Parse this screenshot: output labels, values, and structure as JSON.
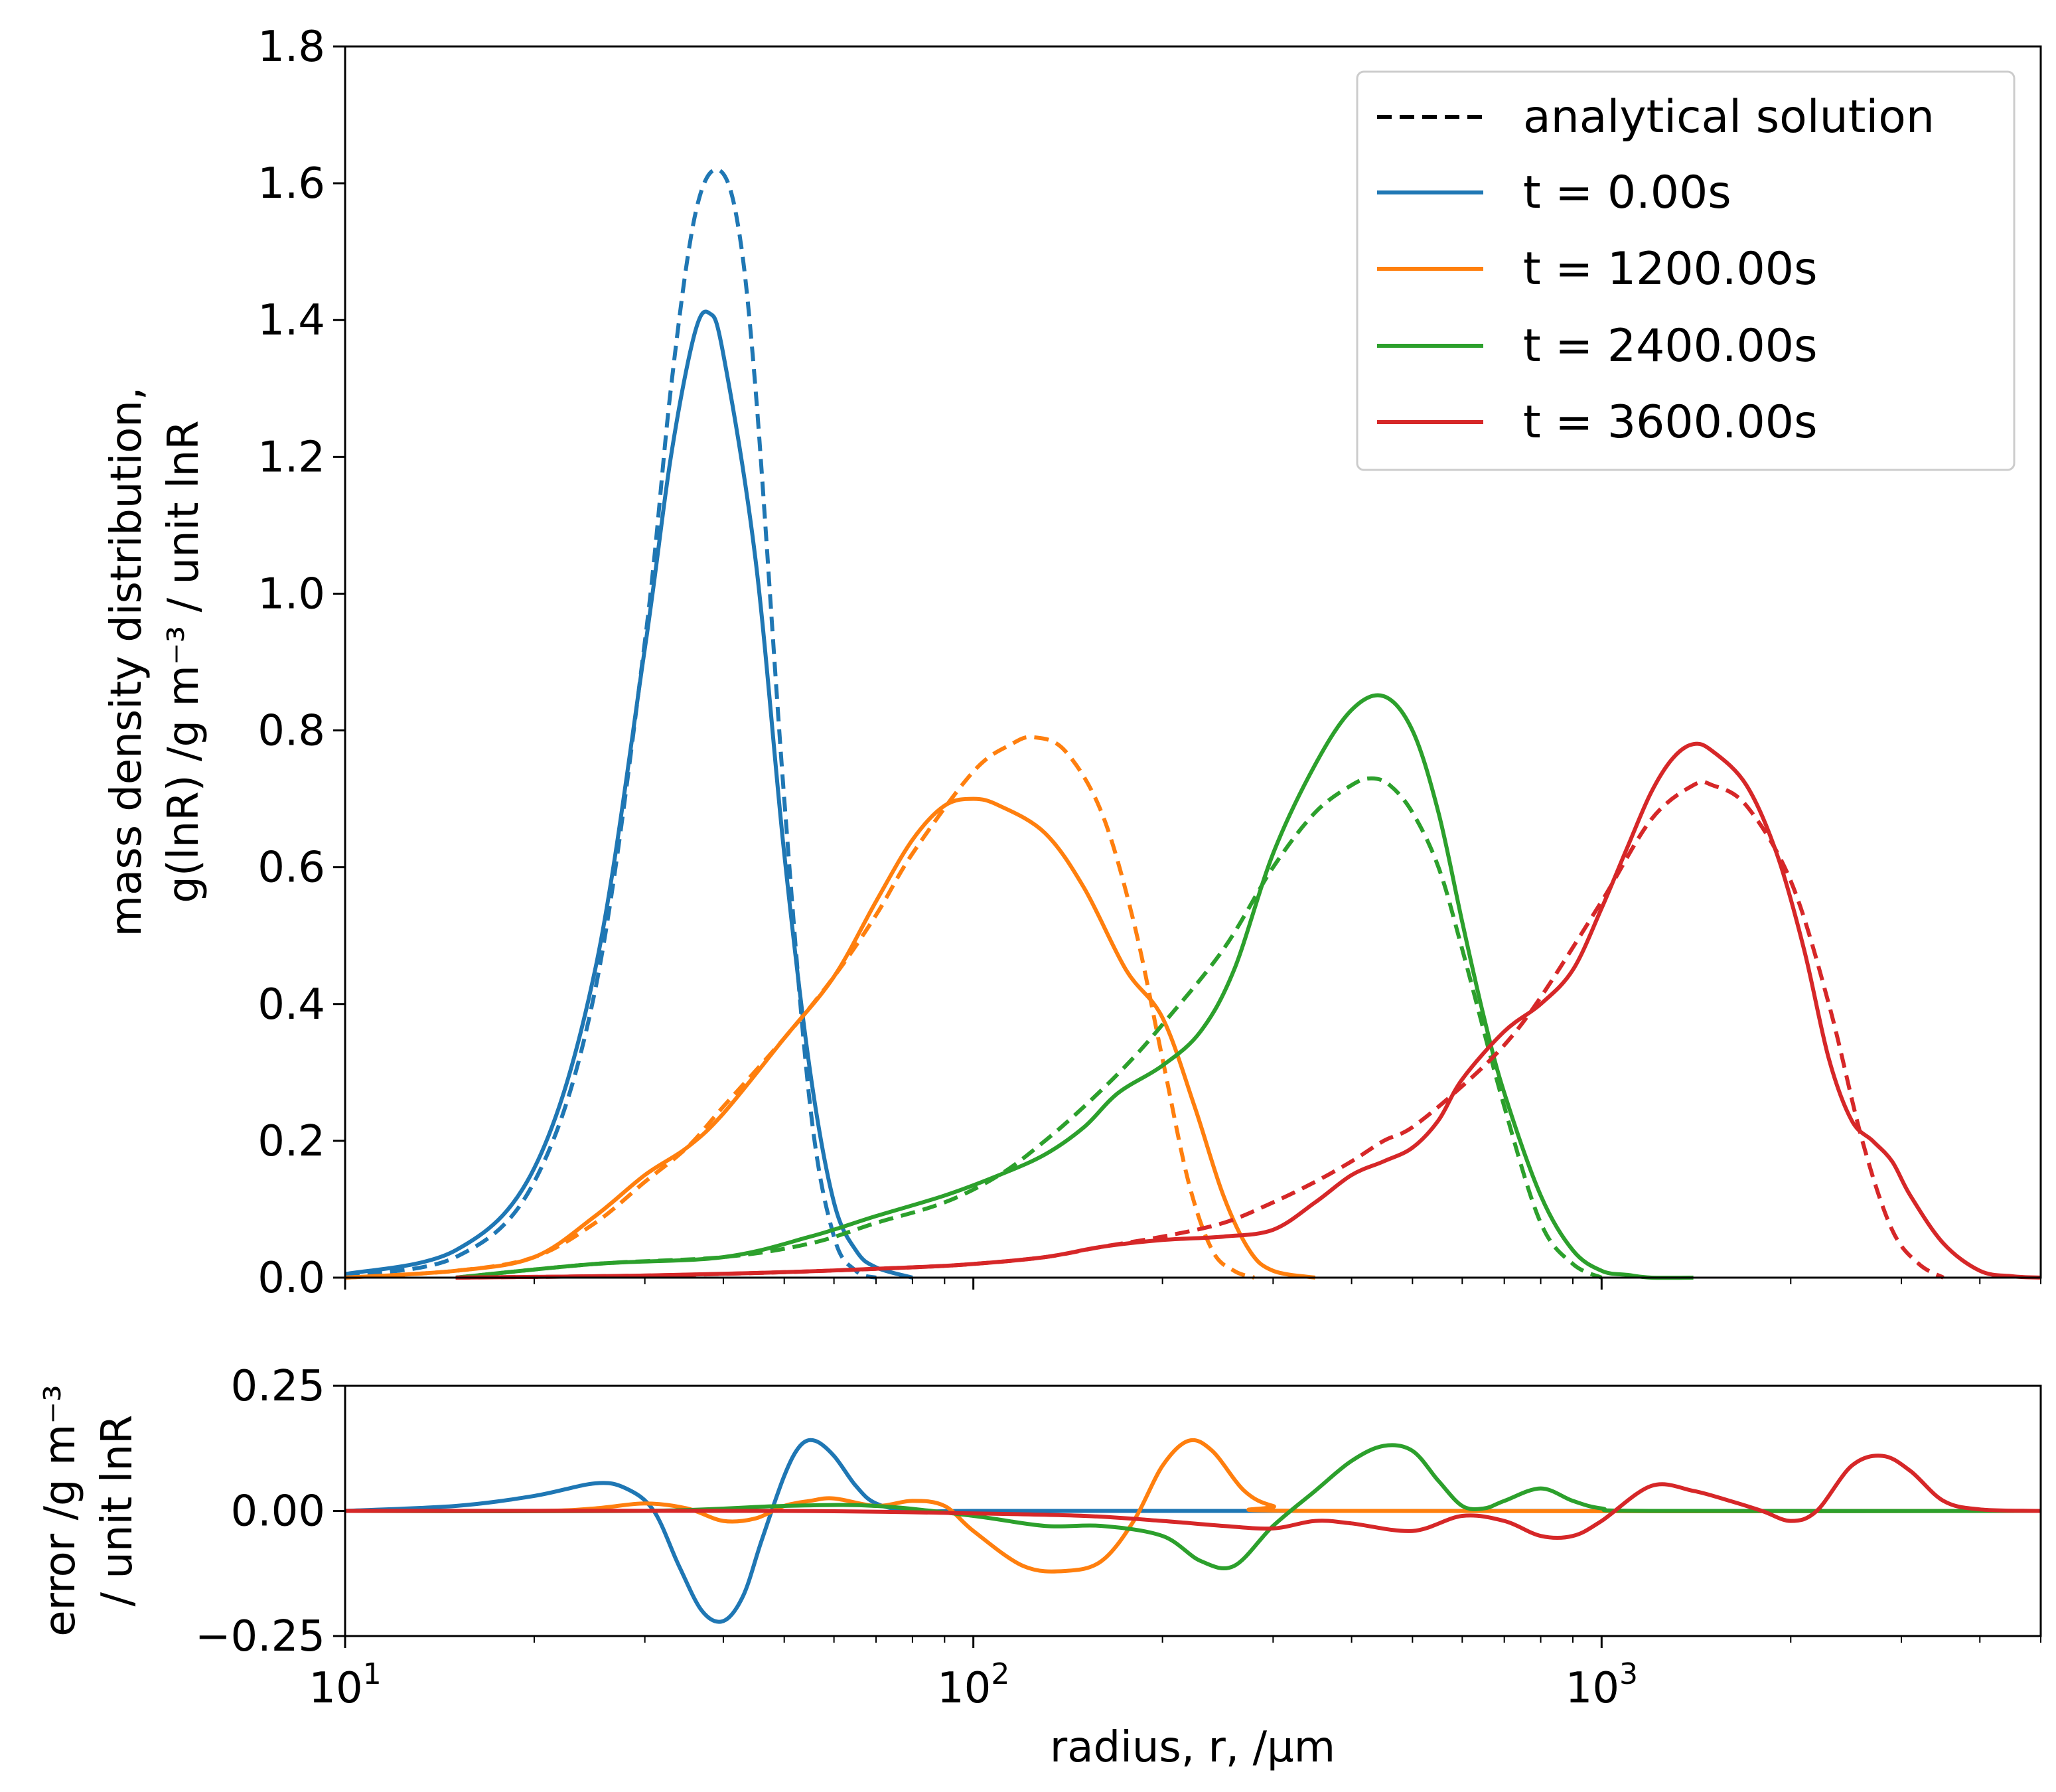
{
  "chart_data": [
    {
      "type": "line",
      "panel": "main",
      "xlabel": "",
      "ylabel_line1": "mass density distribution,",
      "ylabel_line2": "g(lnR) /g m⁻³ / unit lnR",
      "x_scale": "log",
      "xlim": [
        10,
        5000
      ],
      "ylim": [
        0,
        1.8
      ],
      "yticks": [
        "0.0",
        "0.2",
        "0.4",
        "0.6",
        "0.8",
        "1.0",
        "1.2",
        "1.4",
        "1.6",
        "1.8"
      ],
      "grid": false,
      "legend_position": "upper right",
      "legend": [
        {
          "label": "analytical solution",
          "color": "#000000",
          "style": "dashed"
        },
        {
          "label": "t = 0.00s",
          "color": "#1f77b4",
          "style": "solid"
        },
        {
          "label": "t = 1200.00s",
          "color": "#ff7f0e",
          "style": "solid"
        },
        {
          "label": "t = 2400.00s",
          "color": "#2ca02c",
          "style": "solid"
        },
        {
          "label": "t = 3600.00s",
          "color": "#d62728",
          "style": "solid"
        }
      ],
      "series": [
        {
          "name": "t = 0.00s",
          "color": "#1f77b4",
          "style": "solid",
          "x": [
            10,
            15,
            20,
            25,
            30,
            33,
            36,
            38,
            40,
            45,
            50,
            55,
            60,
            65,
            70,
            80
          ],
          "y": [
            0.005,
            0.04,
            0.16,
            0.45,
            0.92,
            1.2,
            1.38,
            1.41,
            1.35,
            1.05,
            0.62,
            0.3,
            0.11,
            0.04,
            0.015,
            0.0
          ]
        },
        {
          "name": "t = 0.00s (analytical)",
          "color": "#1f77b4",
          "style": "dashed",
          "x": [
            10,
            15,
            20,
            25,
            30,
            33,
            36,
            39,
            42,
            45,
            50,
            55,
            60,
            65,
            70
          ],
          "y": [
            0.003,
            0.03,
            0.14,
            0.42,
            0.93,
            1.3,
            1.55,
            1.62,
            1.55,
            1.3,
            0.7,
            0.25,
            0.06,
            0.01,
            0.0
          ]
        },
        {
          "name": "t = 1200.00s",
          "color": "#ff7f0e",
          "style": "solid",
          "x": [
            10,
            15,
            20,
            25,
            30,
            35,
            40,
            50,
            60,
            70,
            80,
            90,
            100,
            110,
            130,
            150,
            175,
            200,
            225,
            250,
            275,
            300,
            350
          ],
          "y": [
            0.0,
            0.01,
            0.03,
            0.09,
            0.15,
            0.19,
            0.24,
            0.35,
            0.44,
            0.55,
            0.64,
            0.69,
            0.7,
            0.69,
            0.65,
            0.57,
            0.45,
            0.38,
            0.25,
            0.12,
            0.04,
            0.01,
            0.0
          ]
        },
        {
          "name": "t = 1200.00s (analytical)",
          "color": "#ff7f0e",
          "style": "dashed",
          "x": [
            10,
            15,
            20,
            25,
            30,
            35,
            40,
            50,
            60,
            70,
            80,
            100,
            115,
            125,
            140,
            160,
            180,
            200,
            220,
            240,
            260,
            280
          ],
          "y": [
            0.0,
            0.01,
            0.03,
            0.08,
            0.14,
            0.19,
            0.25,
            0.35,
            0.44,
            0.53,
            0.62,
            0.74,
            0.78,
            0.79,
            0.77,
            0.68,
            0.52,
            0.32,
            0.14,
            0.04,
            0.01,
            0.0
          ]
        },
        {
          "name": "t = 2400.00s",
          "color": "#2ca02c",
          "style": "solid",
          "x": [
            15,
            25,
            40,
            55,
            70,
            90,
            110,
            130,
            150,
            170,
            200,
            230,
            260,
            300,
            350,
            400,
            450,
            500,
            550,
            600,
            650,
            700,
            800,
            900,
            1000,
            1100,
            1200,
            1400
          ],
          "y": [
            0.0,
            0.02,
            0.03,
            0.06,
            0.09,
            0.12,
            0.15,
            0.18,
            0.22,
            0.27,
            0.31,
            0.36,
            0.45,
            0.62,
            0.75,
            0.83,
            0.85,
            0.8,
            0.68,
            0.52,
            0.38,
            0.27,
            0.12,
            0.04,
            0.01,
            0.004,
            0.0,
            0.0
          ]
        },
        {
          "name": "t = 2400.00s (analytical)",
          "color": "#2ca02c",
          "style": "dashed",
          "x": [
            15,
            25,
            40,
            55,
            70,
            90,
            110,
            130,
            150,
            175,
            200,
            250,
            300,
            350,
            400,
            430,
            460,
            500,
            550,
            600,
            700,
            800,
            900,
            1000
          ],
          "y": [
            0.0,
            0.02,
            0.03,
            0.05,
            0.08,
            0.11,
            0.15,
            0.2,
            0.25,
            0.31,
            0.37,
            0.48,
            0.6,
            0.68,
            0.72,
            0.73,
            0.72,
            0.68,
            0.6,
            0.48,
            0.25,
            0.08,
            0.02,
            0.0
          ]
        },
        {
          "name": "t = 3600.00s",
          "color": "#d62728",
          "style": "solid",
          "x": [
            15,
            30,
            50,
            80,
            100,
            130,
            160,
            200,
            250,
            300,
            350,
            400,
            450,
            500,
            550,
            600,
            700,
            800,
            900,
            1000,
            1100,
            1200,
            1300,
            1400,
            1500,
            1700,
            1900,
            2100,
            2300,
            2500,
            2700,
            2900,
            3100,
            3500,
            4000,
            4500,
            5000
          ],
          "y": [
            0.0,
            0.003,
            0.008,
            0.015,
            0.02,
            0.03,
            0.045,
            0.055,
            0.06,
            0.07,
            0.11,
            0.15,
            0.17,
            0.19,
            0.23,
            0.29,
            0.36,
            0.4,
            0.45,
            0.54,
            0.63,
            0.71,
            0.76,
            0.78,
            0.77,
            0.72,
            0.62,
            0.48,
            0.32,
            0.23,
            0.2,
            0.17,
            0.12,
            0.05,
            0.01,
            0.002,
            0.0
          ]
        },
        {
          "name": "t = 3600.00s (analytical)",
          "color": "#d62728",
          "style": "dashed",
          "x": [
            15,
            30,
            50,
            80,
            100,
            130,
            160,
            200,
            250,
            300,
            350,
            400,
            450,
            500,
            600,
            700,
            800,
            1000,
            1200,
            1400,
            1500,
            1700,
            2000,
            2300,
            2600,
            2900,
            3200,
            3500
          ],
          "y": [
            0.0,
            0.003,
            0.008,
            0.015,
            0.02,
            0.03,
            0.045,
            0.06,
            0.08,
            0.11,
            0.14,
            0.17,
            0.2,
            0.22,
            0.28,
            0.34,
            0.41,
            0.55,
            0.67,
            0.72,
            0.72,
            0.69,
            0.58,
            0.4,
            0.2,
            0.07,
            0.02,
            0.0
          ]
        }
      ]
    },
    {
      "type": "line",
      "panel": "error",
      "xlabel": "radius, r, /µm",
      "ylabel_line1": "error /g m⁻³",
      "ylabel_line2": "/ unit lnR",
      "x_scale": "log",
      "xlim": [
        10,
        5000
      ],
      "xticks": [
        {
          "base": "10",
          "exp": "1",
          "value": 10
        },
        {
          "base": "10",
          "exp": "2",
          "value": 100
        },
        {
          "base": "10",
          "exp": "3",
          "value": 1000
        }
      ],
      "ylim": [
        -0.25,
        0.25
      ],
      "yticks": [
        "−0.25",
        "0.00",
        "0.25"
      ],
      "grid": false,
      "series": [
        {
          "name": "t = 0.00s",
          "color": "#1f77b4",
          "style": "solid",
          "x": [
            10,
            15,
            20,
            25,
            28,
            31,
            34,
            37,
            40,
            43,
            46,
            50,
            53,
            56,
            60,
            65,
            70,
            80,
            100,
            200,
            500,
            5000
          ],
          "y": [
            0.0,
            0.01,
            0.03,
            0.055,
            0.045,
            0.0,
            -0.11,
            -0.2,
            -0.22,
            -0.17,
            -0.06,
            0.07,
            0.13,
            0.14,
            0.11,
            0.05,
            0.015,
            0.0,
            0.0,
            0.0,
            0.0,
            0.0
          ]
        },
        {
          "name": "t = 1200.00s",
          "color": "#ff7f0e",
          "style": "solid",
          "x": [
            10,
            20,
            25,
            30,
            35,
            40,
            45,
            50,
            55,
            60,
            70,
            80,
            90,
            100,
            120,
            140,
            160,
            180,
            200,
            220,
            240,
            270,
            300,
            350,
            5000
          ],
          "y": [
            0.0,
            0.0,
            0.005,
            0.015,
            0.005,
            -0.02,
            -0.015,
            0.01,
            0.02,
            0.025,
            0.01,
            0.02,
            0.01,
            -0.04,
            -0.11,
            -0.12,
            -0.1,
            -0.02,
            0.09,
            0.14,
            0.12,
            0.04,
            0.01,
            0.0,
            0.0
          ]
        },
        {
          "name": "t = 2400.00s",
          "color": "#2ca02c",
          "style": "solid",
          "x": [
            10,
            30,
            50,
            70,
            100,
            130,
            160,
            200,
            230,
            260,
            300,
            350,
            400,
            450,
            500,
            550,
            600,
            650,
            700,
            800,
            900,
            1000,
            1200,
            5000
          ],
          "y": [
            0.0,
            0.0,
            0.01,
            0.01,
            -0.01,
            -0.03,
            -0.03,
            -0.05,
            -0.1,
            -0.11,
            -0.03,
            0.04,
            0.1,
            0.13,
            0.12,
            0.06,
            0.01,
            0.005,
            0.02,
            0.045,
            0.02,
            0.005,
            0.0,
            0.0
          ]
        },
        {
          "name": "t = 3600.00s",
          "color": "#d62728",
          "style": "solid",
          "x": [
            10,
            50,
            100,
            150,
            200,
            250,
            300,
            350,
            400,
            500,
            600,
            700,
            800,
            900,
            1000,
            1200,
            1400,
            1600,
            1800,
            2000,
            2200,
            2500,
            2800,
            3100,
            3500,
            4000,
            5000
          ],
          "y": [
            0.0,
            0.0,
            -0.005,
            -0.01,
            -0.02,
            -0.03,
            -0.035,
            -0.02,
            -0.025,
            -0.04,
            -0.01,
            -0.02,
            -0.05,
            -0.05,
            -0.02,
            0.05,
            0.04,
            0.02,
            0.0,
            -0.02,
            0.0,
            0.09,
            0.11,
            0.08,
            0.02,
            0.003,
            0.0
          ]
        }
      ]
    }
  ]
}
